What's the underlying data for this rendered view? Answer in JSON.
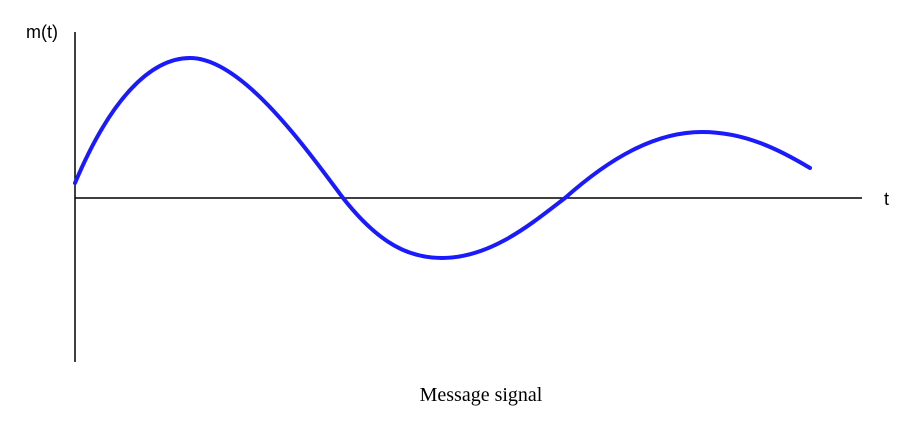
{
  "diagram": {
    "y_axis_label": "m(t)",
    "x_axis_label": "t",
    "caption": "Message signal",
    "curve_color": "#1a1aff",
    "axis_color": "#000000"
  }
}
